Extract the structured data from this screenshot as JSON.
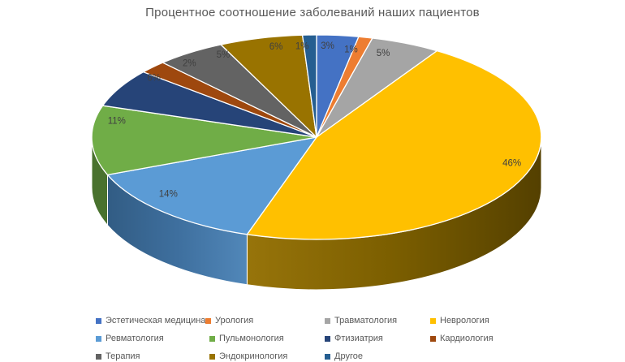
{
  "chart_data": {
    "type": "pie",
    "style": "3d",
    "title": "Процентное соотношение заболеваний наших пациентов",
    "legend_position": "bottom",
    "data_labels": "percent",
    "series": [
      {
        "label": "Эстетическая медицина",
        "value": 3,
        "pct_label": "3%",
        "color": "#4472C4"
      },
      {
        "label": "Урология",
        "value": 1,
        "pct_label": "1%",
        "color": "#ED7D31"
      },
      {
        "label": "Травматология",
        "value": 5,
        "pct_label": "5%",
        "color": "#A5A5A5"
      },
      {
        "label": "Неврология",
        "value": 46,
        "pct_label": "46%",
        "color": "#FFC000"
      },
      {
        "label": "Ревматология",
        "value": 14,
        "pct_label": "14%",
        "color": "#5B9BD5"
      },
      {
        "label": "Пульмонология",
        "value": 11,
        "pct_label": "11%",
        "color": "#70AD47"
      },
      {
        "label": "Фтизиатрия",
        "value": 6,
        "pct_label": "6%",
        "color": "#264478"
      },
      {
        "label": "Кардиология",
        "value": 2,
        "pct_label": "2%",
        "color": "#9E480E"
      },
      {
        "label": "Терапия",
        "value": 5,
        "pct_label": "5%",
        "color": "#636363"
      },
      {
        "label": "Эндокринология",
        "value": 6,
        "pct_label": "6%",
        "color": "#997300"
      },
      {
        "label": "Другое",
        "value": 1,
        "pct_label": "1%",
        "color": "#255E91"
      }
    ],
    "text_colors": {
      "title": "#595959",
      "data_label": "#404040",
      "legend": "#595959"
    }
  }
}
